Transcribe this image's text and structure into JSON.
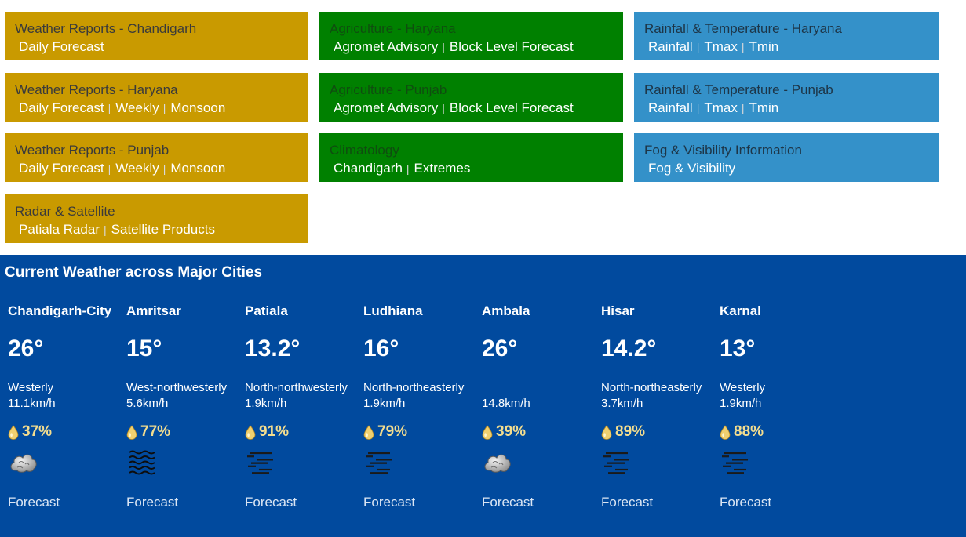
{
  "tiles": {
    "wr_chd": {
      "title": "Weather Reports - Chandigarh",
      "links": [
        "Daily Forecast"
      ]
    },
    "wr_hr": {
      "title": "Weather Reports - Haryana",
      "links": [
        "Daily Forecast",
        "Weekly",
        "Monsoon"
      ]
    },
    "wr_pb": {
      "title": "Weather Reports - Punjab",
      "links": [
        "Daily Forecast",
        "Weekly",
        "Monsoon"
      ]
    },
    "radar": {
      "title": "Radar & Satellite",
      "links": [
        "Patiala Radar",
        "Satellite Products"
      ]
    },
    "agri_hr": {
      "title": "Agriculture - Haryana",
      "links": [
        "Agromet Advisory",
        "Block Level Forecast"
      ]
    },
    "agri_pb": {
      "title": "Agriculture - Punjab",
      "links": [
        "Agromet Advisory",
        "Block Level Forecast"
      ]
    },
    "clim": {
      "title": "Climatology",
      "links": [
        "Chandigarh",
        "Extremes"
      ]
    },
    "rt_hr": {
      "title": "Rainfall & Temperature - Haryana",
      "links": [
        "Rainfall",
        "Tmax",
        "Tmin"
      ]
    },
    "rt_pb": {
      "title": "Rainfall & Temperature - Punjab",
      "links": [
        "Rainfall",
        "Tmax",
        "Tmin"
      ]
    },
    "fog": {
      "title": "Fog & Visibility Information",
      "links": [
        "Fog & Visibility"
      ]
    }
  },
  "tile_colors": {
    "gold": "#c99a00",
    "green": "#008000",
    "blue": "#3491c9"
  },
  "current_weather": {
    "title": "Current Weather across Major Cities",
    "background": "#014a9e",
    "humidity_icon": "water-drop-icon",
    "cities": [
      {
        "name": "Chandigarh-City",
        "temp": "26°",
        "wind_dir": "Westerly",
        "wind_speed": "11.1km/h",
        "humidity": "37%",
        "icon": "cloud-icon",
        "forecast": "Forecast"
      },
      {
        "name": "Amritsar",
        "temp": "15°",
        "wind_dir": "West-northwesterly",
        "wind_speed": "5.6km/h",
        "humidity": "77%",
        "icon": "mist-icon",
        "forecast": "Forecast"
      },
      {
        "name": "Patiala",
        "temp": "13.2°",
        "wind_dir": "North-northwesterly",
        "wind_speed": "1.9km/h",
        "humidity": "91%",
        "icon": "haze-icon",
        "forecast": "Forecast"
      },
      {
        "name": "Ludhiana",
        "temp": "16°",
        "wind_dir": "North-northeasterly",
        "wind_speed": "1.9km/h",
        "humidity": "79%",
        "icon": "haze-icon",
        "forecast": "Forecast"
      },
      {
        "name": "Ambala",
        "temp": "26°",
        "wind_dir": "",
        "wind_speed": "14.8km/h",
        "humidity": "39%",
        "icon": "cloud-icon",
        "forecast": "Forecast"
      },
      {
        "name": "Hisar",
        "temp": "14.2°",
        "wind_dir": "North-northeasterly",
        "wind_speed": "3.7km/h",
        "humidity": "89%",
        "icon": "haze-icon",
        "forecast": "Forecast"
      },
      {
        "name": "Karnal",
        "temp": "13°",
        "wind_dir": "Westerly",
        "wind_speed": "1.9km/h",
        "humidity": "88%",
        "icon": "haze-icon",
        "forecast": "Forecast"
      }
    ]
  }
}
